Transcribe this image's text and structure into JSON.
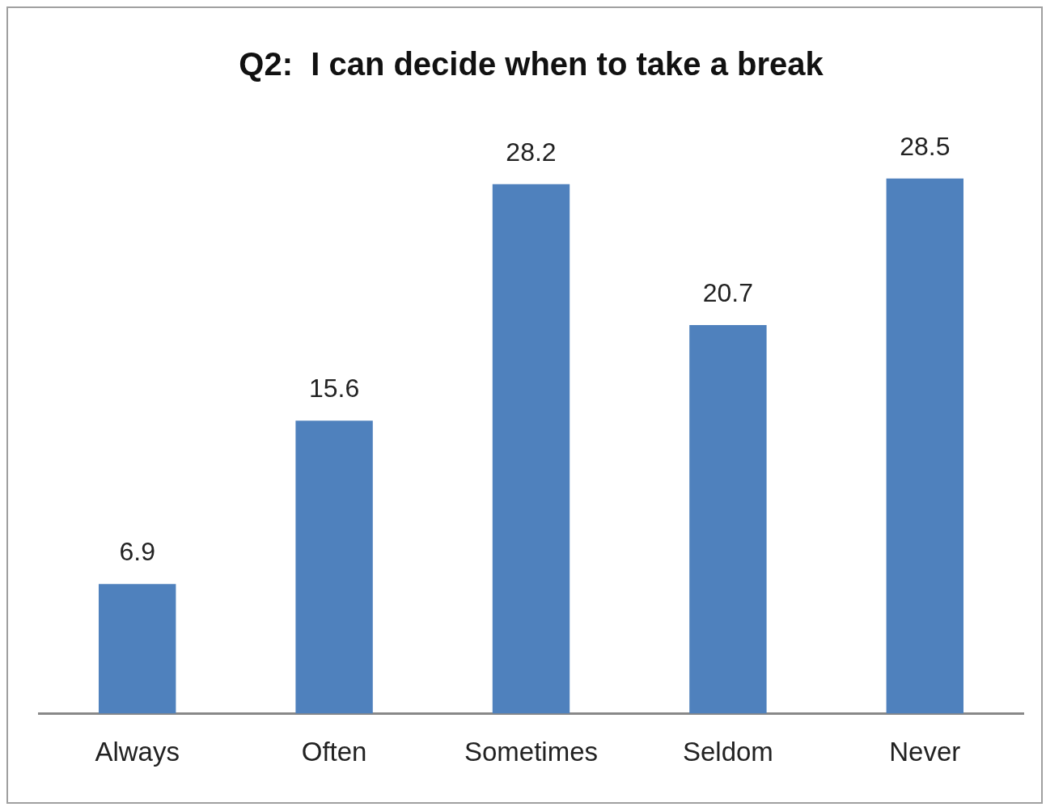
{
  "chart_data": {
    "type": "bar",
    "title": "Q2:  I can decide when to take a break",
    "categories": [
      "Always",
      "Often",
      "Sometimes",
      "Seldom",
      "Never"
    ],
    "values": [
      6.9,
      15.6,
      28.2,
      20.7,
      28.5
    ],
    "color": "#4f81bd",
    "data_labels": true,
    "grid": false,
    "legend": false,
    "tick_labels": "x"
  }
}
